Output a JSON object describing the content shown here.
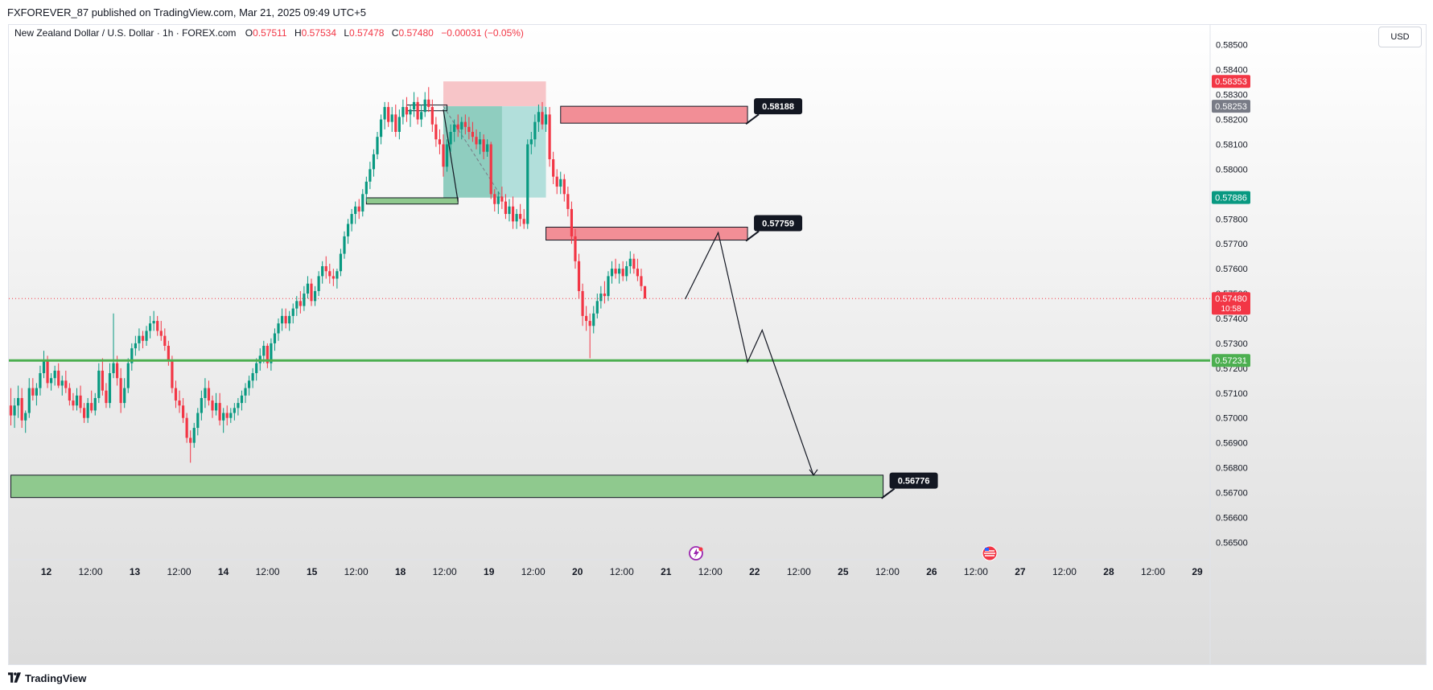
{
  "header": {
    "published_text": "FXFOREVER_87 published on TradingView.com, Mar 21, 2025 09:49 UTC+5"
  },
  "legend": {
    "symbol": "New Zealand Dollar / U.S. Dollar · 1h · FOREX.com",
    "open_label": "O",
    "open": "0.57511",
    "high_label": "H",
    "high": "0.57534",
    "low_label": "L",
    "low": "0.57478",
    "close_label": "C",
    "close": "0.57480",
    "change": "−0.00031 (−0.05%)"
  },
  "currency_button": "USD",
  "footer": {
    "brand": "TradingView"
  },
  "colors": {
    "bull": "#089981",
    "bear": "#f23645",
    "green_line": "#4caf50",
    "supply_zone": "#f28e96",
    "demand_zone": "#8fc98e"
  },
  "chart_data": {
    "type": "candlestick",
    "y_axis": {
      "range": [
        0.5643,
        0.5858
      ],
      "tick_labels": [
        "0.58500",
        "0.58400",
        "0.58300",
        "0.58200",
        "0.58100",
        "0.58000",
        "0.57900",
        "0.57800",
        "0.57700",
        "0.57600",
        "0.57500",
        "0.57400",
        "0.57300",
        "0.57200",
        "0.57100",
        "0.57000",
        "0.56900",
        "0.56800",
        "0.56700",
        "0.56600",
        "0.56500"
      ]
    },
    "x_axis": {
      "tick_labels": [
        "12",
        "12:00",
        "13",
        "12:00",
        "14",
        "12:00",
        "15",
        "12:00",
        "18",
        "12:00",
        "19",
        "12:00",
        "20",
        "12:00",
        "21",
        "12:00",
        "22",
        "12:00",
        "25",
        "12:00",
        "26",
        "12:00",
        "27",
        "12:00",
        "28",
        "12:00",
        "29"
      ]
    },
    "price_labels": [
      {
        "value": "0.58353",
        "color": "#f23645"
      },
      {
        "value": "0.58253",
        "color": "#787b86"
      },
      {
        "value": "0.57886",
        "color": "#089981"
      },
      {
        "value": "0.57480",
        "sub": "10:58",
        "color": "#f23645"
      },
      {
        "value": "0.57231",
        "color": "#4caf50"
      }
    ],
    "horizontal_levels": [
      {
        "value": 0.57231,
        "style": "solid",
        "color": "#4caf50"
      },
      {
        "value": 0.5748,
        "style": "dotted",
        "color": "#f23645"
      }
    ],
    "zones": [
      {
        "type": "supply",
        "label": "0.58188",
        "top": 0.58253,
        "bottom": 0.58185,
        "from_bar": 150,
        "to_bar": 201
      },
      {
        "type": "supply",
        "label": "0.57759",
        "top": 0.57767,
        "bottom": 0.57715,
        "from_bar": 146,
        "to_bar": 201
      },
      {
        "type": "demand",
        "label": "0.56776",
        "top": 0.5677,
        "bottom": 0.5668,
        "from_bar": 0,
        "to_bar": 238
      }
    ],
    "small_demand": {
      "top": 0.57885,
      "bottom": 0.5786,
      "from_bar": 97,
      "to_bar": 122
    },
    "position": {
      "entry": 0.58253,
      "stop": 0.58353,
      "target": 0.57886,
      "from_bar": 118,
      "to_bar": 146
    },
    "projection_path": [
      [
        184,
        0.57478
      ],
      [
        193,
        0.57745
      ],
      [
        201,
        0.57225
      ],
      [
        205,
        0.57353
      ],
      [
        219,
        0.5677
      ]
    ],
    "candles": [
      [
        0.5705,
        0.5712,
        0.5697,
        0.5701
      ],
      [
        0.5701,
        0.5708,
        0.5696,
        0.5705
      ],
      [
        0.5705,
        0.5713,
        0.57,
        0.5708
      ],
      [
        0.5708,
        0.5712,
        0.5696,
        0.5699
      ],
      [
        0.5699,
        0.5703,
        0.5694,
        0.5702
      ],
      [
        0.5702,
        0.5716,
        0.57,
        0.5712
      ],
      [
        0.5712,
        0.5716,
        0.5707,
        0.5709
      ],
      [
        0.5709,
        0.5714,
        0.5705,
        0.5712
      ],
      [
        0.5712,
        0.5721,
        0.5709,
        0.5718
      ],
      [
        0.5718,
        0.5727,
        0.5716,
        0.5723
      ],
      [
        0.5723,
        0.5725,
        0.5712,
        0.5714
      ],
      [
        0.5714,
        0.5718,
        0.5711,
        0.5716
      ],
      [
        0.5716,
        0.5721,
        0.5713,
        0.5719
      ],
      [
        0.5719,
        0.5722,
        0.5712,
        0.5713
      ],
      [
        0.5713,
        0.5717,
        0.5709,
        0.5715
      ],
      [
        0.5715,
        0.5719,
        0.571,
        0.5712
      ],
      [
        0.5712,
        0.5714,
        0.5705,
        0.5707
      ],
      [
        0.5707,
        0.571,
        0.5703,
        0.5705
      ],
      [
        0.5705,
        0.5712,
        0.5703,
        0.5709
      ],
      [
        0.5709,
        0.5713,
        0.5702,
        0.5704
      ],
      [
        0.5704,
        0.5706,
        0.5698,
        0.57
      ],
      [
        0.57,
        0.5708,
        0.5698,
        0.5706
      ],
      [
        0.5706,
        0.5711,
        0.5702,
        0.5703
      ],
      [
        0.5703,
        0.571,
        0.5701,
        0.5708
      ],
      [
        0.5708,
        0.5722,
        0.5706,
        0.5719
      ],
      [
        0.5719,
        0.5724,
        0.5709,
        0.5711
      ],
      [
        0.5711,
        0.5714,
        0.5704,
        0.5706
      ],
      [
        0.5706,
        0.5722,
        0.5704,
        0.5718
      ],
      [
        0.5718,
        0.5742,
        0.5716,
        0.5722
      ],
      [
        0.5722,
        0.5725,
        0.5713,
        0.5716
      ],
      [
        0.5716,
        0.572,
        0.5702,
        0.5706
      ],
      [
        0.5706,
        0.5716,
        0.5704,
        0.5712
      ],
      [
        0.5712,
        0.5724,
        0.571,
        0.5722
      ],
      [
        0.5722,
        0.573,
        0.5719,
        0.5728
      ],
      [
        0.5728,
        0.5733,
        0.5725,
        0.573
      ],
      [
        0.573,
        0.5736,
        0.5727,
        0.5733
      ],
      [
        0.5733,
        0.5735,
        0.5728,
        0.5731
      ],
      [
        0.5731,
        0.5737,
        0.5729,
        0.5735
      ],
      [
        0.5735,
        0.5741,
        0.5732,
        0.5738
      ],
      [
        0.5738,
        0.5743,
        0.5735,
        0.5739
      ],
      [
        0.5739,
        0.5741,
        0.5733,
        0.5735
      ],
      [
        0.5735,
        0.5739,
        0.5731,
        0.5733
      ],
      [
        0.5733,
        0.5736,
        0.5727,
        0.5729
      ],
      [
        0.5729,
        0.5731,
        0.5721,
        0.5723
      ],
      [
        0.5723,
        0.5725,
        0.571,
        0.5712
      ],
      [
        0.5712,
        0.5715,
        0.5704,
        0.5707
      ],
      [
        0.5707,
        0.5711,
        0.5702,
        0.5705
      ],
      [
        0.5705,
        0.5708,
        0.5698,
        0.57
      ],
      [
        0.57,
        0.5702,
        0.569,
        0.5692
      ],
      [
        0.5692,
        0.5695,
        0.5682,
        0.569
      ],
      [
        0.569,
        0.5698,
        0.5688,
        0.5696
      ],
      [
        0.5696,
        0.5704,
        0.5693,
        0.5702
      ],
      [
        0.5702,
        0.5711,
        0.5699,
        0.5708
      ],
      [
        0.5708,
        0.5716,
        0.5704,
        0.5712
      ],
      [
        0.5712,
        0.5715,
        0.5705,
        0.5707
      ],
      [
        0.5707,
        0.5709,
        0.57,
        0.5703
      ],
      [
        0.5703,
        0.571,
        0.5701,
        0.5706
      ],
      [
        0.5706,
        0.571,
        0.5697,
        0.5699
      ],
      [
        0.5699,
        0.5704,
        0.5694,
        0.5702
      ],
      [
        0.5702,
        0.5705,
        0.5697,
        0.57
      ],
      [
        0.57,
        0.5704,
        0.5698,
        0.5702
      ],
      [
        0.5702,
        0.5706,
        0.5699,
        0.5704
      ],
      [
        0.5704,
        0.5708,
        0.5701,
        0.5706
      ],
      [
        0.5706,
        0.5711,
        0.5703,
        0.5709
      ],
      [
        0.5709,
        0.5714,
        0.5706,
        0.5712
      ],
      [
        0.5712,
        0.5717,
        0.5709,
        0.5715
      ],
      [
        0.5715,
        0.572,
        0.5712,
        0.5718
      ],
      [
        0.5718,
        0.5724,
        0.5715,
        0.5722
      ],
      [
        0.5722,
        0.5728,
        0.5719,
        0.5725
      ],
      [
        0.5725,
        0.5731,
        0.5722,
        0.5729
      ],
      [
        0.5729,
        0.573,
        0.572,
        0.5722
      ],
      [
        0.5722,
        0.5732,
        0.5719,
        0.573
      ],
      [
        0.573,
        0.5736,
        0.5727,
        0.5734
      ],
      [
        0.5734,
        0.574,
        0.5731,
        0.5738
      ],
      [
        0.5738,
        0.5744,
        0.5735,
        0.5741
      ],
      [
        0.5741,
        0.5744,
        0.5736,
        0.5738
      ],
      [
        0.5738,
        0.5743,
        0.5735,
        0.5741
      ],
      [
        0.5741,
        0.5746,
        0.5738,
        0.5744
      ],
      [
        0.5744,
        0.5749,
        0.5741,
        0.5747
      ],
      [
        0.5747,
        0.5751,
        0.5742,
        0.5745
      ],
      [
        0.5745,
        0.5753,
        0.5743,
        0.575
      ],
      [
        0.575,
        0.5757,
        0.5748,
        0.5754
      ],
      [
        0.5754,
        0.5756,
        0.5745,
        0.5747
      ],
      [
        0.5747,
        0.5753,
        0.5745,
        0.5751
      ],
      [
        0.5751,
        0.5759,
        0.5749,
        0.5757
      ],
      [
        0.5757,
        0.5763,
        0.5754,
        0.5761
      ],
      [
        0.5761,
        0.5765,
        0.5756,
        0.5759
      ],
      [
        0.5759,
        0.5762,
        0.5754,
        0.5757
      ],
      [
        0.5757,
        0.576,
        0.5753,
        0.5756
      ],
      [
        0.5756,
        0.576,
        0.5752,
        0.5759
      ],
      [
        0.5759,
        0.5768,
        0.5757,
        0.5766
      ],
      [
        0.5766,
        0.5775,
        0.5764,
        0.5773
      ],
      [
        0.5773,
        0.578,
        0.577,
        0.5778
      ],
      [
        0.5778,
        0.5784,
        0.5775,
        0.5782
      ],
      [
        0.5782,
        0.5787,
        0.5778,
        0.5785
      ],
      [
        0.5785,
        0.5788,
        0.578,
        0.5783
      ],
      [
        0.5783,
        0.5792,
        0.5781,
        0.579
      ],
      [
        0.579,
        0.5797,
        0.5787,
        0.5795
      ],
      [
        0.5795,
        0.5803,
        0.5792,
        0.58
      ],
      [
        0.58,
        0.5808,
        0.5797,
        0.5806
      ],
      [
        0.5806,
        0.5815,
        0.5804,
        0.5813
      ],
      [
        0.5813,
        0.5822,
        0.581,
        0.582
      ],
      [
        0.582,
        0.5827,
        0.5816,
        0.5825
      ],
      [
        0.5825,
        0.5827,
        0.5817,
        0.5819
      ],
      [
        0.5819,
        0.5825,
        0.5815,
        0.5822
      ],
      [
        0.5822,
        0.5826,
        0.5813,
        0.5815
      ],
      [
        0.5815,
        0.5824,
        0.5812,
        0.5821
      ],
      [
        0.5821,
        0.5828,
        0.5818,
        0.5825
      ],
      [
        0.5825,
        0.5829,
        0.5819,
        0.5822
      ],
      [
        0.5822,
        0.5826,
        0.5817,
        0.5824
      ],
      [
        0.5824,
        0.5831,
        0.5821,
        0.5827
      ],
      [
        0.5827,
        0.5829,
        0.5818,
        0.582
      ],
      [
        0.582,
        0.5826,
        0.5817,
        0.5823
      ],
      [
        0.5823,
        0.5831,
        0.5821,
        0.5828
      ],
      [
        0.5828,
        0.5833,
        0.5823,
        0.5825
      ],
      [
        0.5825,
        0.5828,
        0.5815,
        0.5818
      ],
      [
        0.5818,
        0.5821,
        0.5809,
        0.5812
      ],
      [
        0.5812,
        0.5816,
        0.5806,
        0.581
      ],
      [
        0.581,
        0.5814,
        0.5797,
        0.5801
      ],
      [
        0.5801,
        0.5812,
        0.5799,
        0.581
      ],
      [
        0.581,
        0.5818,
        0.5807,
        0.5815
      ],
      [
        0.5815,
        0.582,
        0.5811,
        0.5818
      ],
      [
        0.5818,
        0.5822,
        0.5813,
        0.5816
      ],
      [
        0.5816,
        0.5821,
        0.5812,
        0.5819
      ],
      [
        0.5819,
        0.5822,
        0.5814,
        0.5817
      ],
      [
        0.5817,
        0.5821,
        0.5812,
        0.5815
      ],
      [
        0.5815,
        0.5819,
        0.5811,
        0.5813
      ],
      [
        0.5813,
        0.5816,
        0.5808,
        0.581
      ],
      [
        0.581,
        0.5815,
        0.5806,
        0.5812
      ],
      [
        0.5812,
        0.5814,
        0.5804,
        0.5807
      ],
      [
        0.5807,
        0.5812,
        0.5805,
        0.581
      ],
      [
        0.581,
        0.5811,
        0.5788,
        0.579
      ],
      [
        0.579,
        0.5792,
        0.5783,
        0.5786
      ],
      [
        0.5786,
        0.5791,
        0.5782,
        0.5789
      ],
      [
        0.5789,
        0.5793,
        0.5784,
        0.5787
      ],
      [
        0.5787,
        0.579,
        0.578,
        0.5782
      ],
      [
        0.5782,
        0.5788,
        0.5779,
        0.5785
      ],
      [
        0.5785,
        0.5789,
        0.5776,
        0.5779
      ],
      [
        0.5779,
        0.5784,
        0.5776,
        0.5782
      ],
      [
        0.5782,
        0.5786,
        0.5777,
        0.578
      ],
      [
        0.578,
        0.5784,
        0.5776,
        0.5778
      ],
      [
        0.5778,
        0.5812,
        0.5776,
        0.581
      ],
      [
        0.581,
        0.5815,
        0.5806,
        0.5812
      ],
      [
        0.5812,
        0.5822,
        0.5809,
        0.5819
      ],
      [
        0.5819,
        0.5826,
        0.5815,
        0.5823
      ],
      [
        0.5823,
        0.5827,
        0.5816,
        0.5818
      ],
      [
        0.5818,
        0.5825,
        0.5815,
        0.5822
      ],
      [
        0.5822,
        0.5825,
        0.5801,
        0.5804
      ],
      [
        0.5804,
        0.5807,
        0.5794,
        0.5797
      ],
      [
        0.5797,
        0.58,
        0.579,
        0.5793
      ],
      [
        0.5793,
        0.5799,
        0.579,
        0.5796
      ],
      [
        0.5796,
        0.5798,
        0.5787,
        0.579
      ],
      [
        0.579,
        0.5793,
        0.5781,
        0.5784
      ],
      [
        0.5784,
        0.5787,
        0.577,
        0.5773
      ],
      [
        0.5773,
        0.5776,
        0.576,
        0.5763
      ],
      [
        0.5763,
        0.5766,
        0.5748,
        0.5751
      ],
      [
        0.5751,
        0.5754,
        0.5737,
        0.5741
      ],
      [
        0.5741,
        0.5745,
        0.5735,
        0.5739
      ],
      [
        0.5739,
        0.5742,
        0.5724,
        0.5737
      ],
      [
        0.5737,
        0.5745,
        0.5734,
        0.5742
      ],
      [
        0.5742,
        0.575,
        0.574,
        0.5747
      ],
      [
        0.5747,
        0.5753,
        0.5744,
        0.575
      ],
      [
        0.575,
        0.5755,
        0.5746,
        0.5749
      ],
      [
        0.5749,
        0.5759,
        0.5747,
        0.5757
      ],
      [
        0.5757,
        0.5763,
        0.5754,
        0.576
      ],
      [
        0.576,
        0.5764,
        0.5756,
        0.5758
      ],
      [
        0.5758,
        0.5762,
        0.5754,
        0.576
      ],
      [
        0.576,
        0.5763,
        0.5755,
        0.5757
      ],
      [
        0.5757,
        0.5763,
        0.5755,
        0.5761
      ],
      [
        0.5761,
        0.5767,
        0.5758,
        0.5764
      ],
      [
        0.5764,
        0.5766,
        0.5758,
        0.576
      ],
      [
        0.576,
        0.5764,
        0.5755,
        0.5757
      ],
      [
        0.5757,
        0.576,
        0.5751,
        0.5753
      ],
      [
        0.5753,
        0.5753,
        0.5748,
        0.5748
      ]
    ]
  }
}
